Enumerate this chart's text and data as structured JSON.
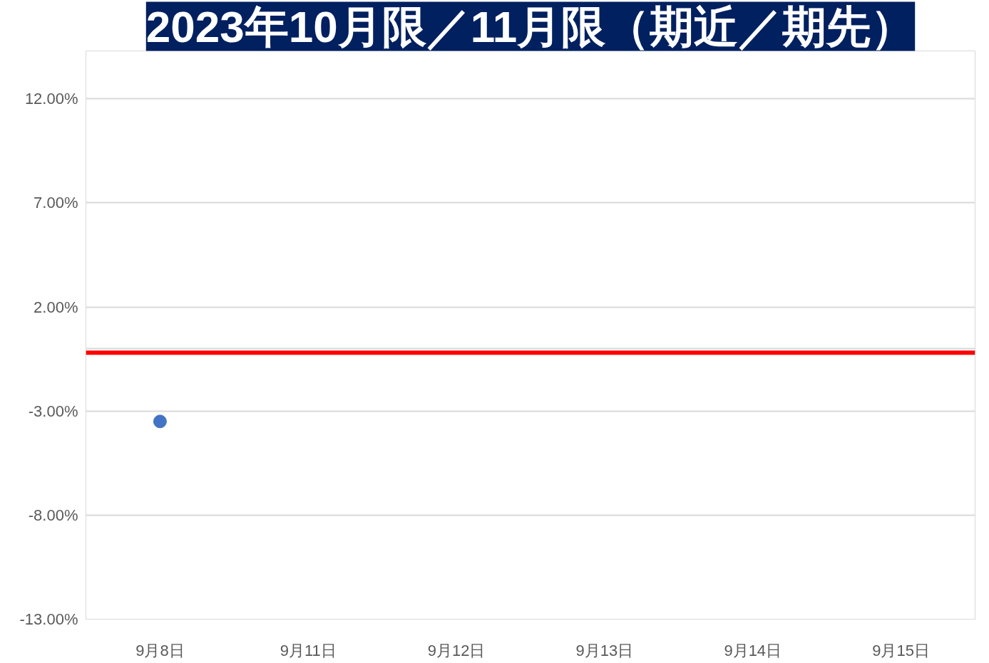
{
  "chart_data": {
    "type": "scatter",
    "title": "2023年10月限／11月限（期近／期先）",
    "categories": [
      "9月8日",
      "9月11日",
      "9月12日",
      "9月13日",
      "9月14日",
      "9月15日"
    ],
    "series": [
      {
        "color": "#4472c4",
        "values": [
          -3.5,
          null,
          null,
          null,
          null,
          null
        ]
      }
    ],
    "marker": "circle",
    "ylim": [
      -13,
      14.3
    ],
    "yticks": [
      {
        "value": 12,
        "label": "12.00%"
      },
      {
        "value": 7,
        "label": "7.00%"
      },
      {
        "value": 2,
        "label": "2.00%"
      },
      {
        "value": -3,
        "label": "-3.00%"
      },
      {
        "value": -8,
        "label": "-8.00%"
      },
      {
        "value": -13,
        "label": "-13.00%"
      }
    ],
    "ref_lines": [
      {
        "axis": "y",
        "value": -0.2,
        "label": null,
        "color": "#ff0000"
      }
    ],
    "grid": "y"
  }
}
